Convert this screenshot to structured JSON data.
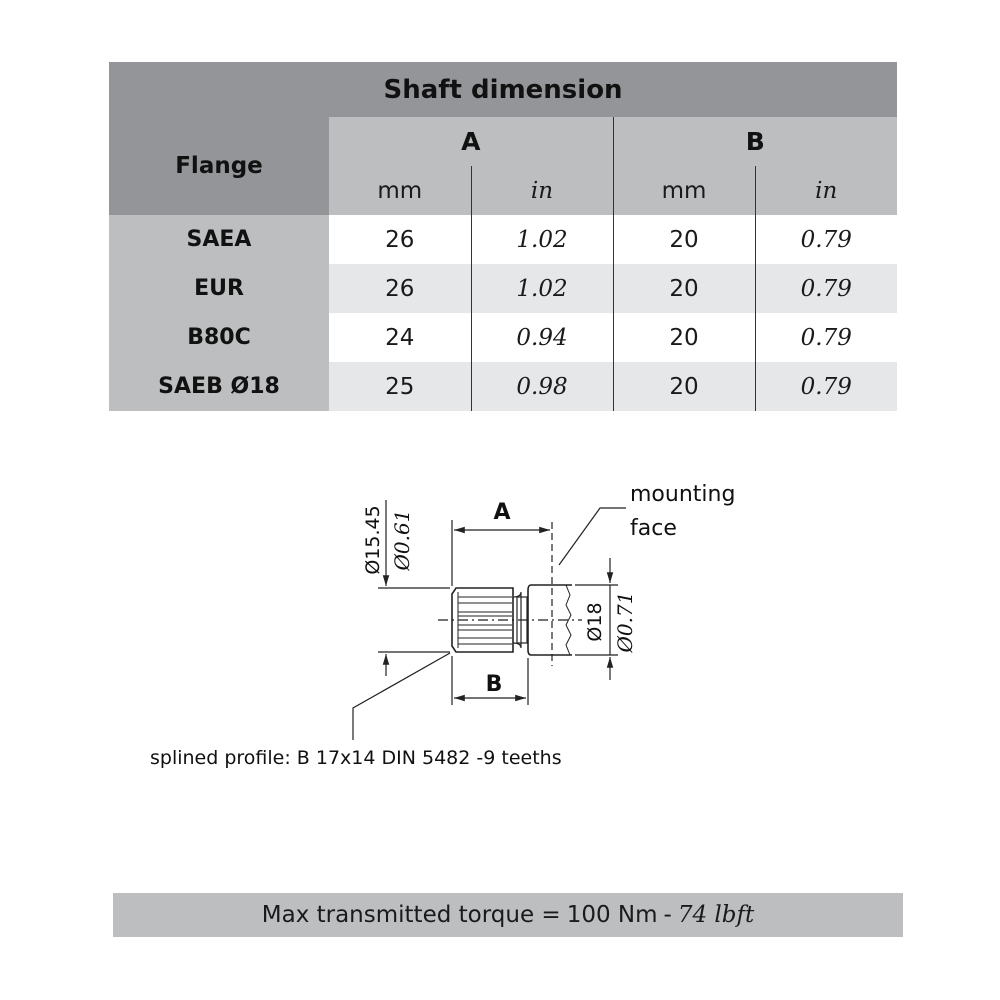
{
  "table": {
    "title": "Shaft dimension",
    "flange_header": "Flange",
    "groups": [
      "A",
      "B"
    ],
    "units": [
      "mm",
      "in",
      "mm",
      "in"
    ],
    "rows": [
      {
        "flange": "SAEA",
        "a_mm": "26",
        "a_in": "1.02",
        "b_mm": "20",
        "b_in": "0.79"
      },
      {
        "flange": "EUR",
        "a_mm": "26",
        "a_in": "1.02",
        "b_mm": "20",
        "b_in": "0.79"
      },
      {
        "flange": "B80C",
        "a_mm": "24",
        "a_in": "0.94",
        "b_mm": "20",
        "b_in": "0.79"
      },
      {
        "flange": "SAEB Ø18",
        "a_mm": "25",
        "a_in": "0.98",
        "b_mm": "20",
        "b_in": "0.79"
      }
    ]
  },
  "drawing": {
    "label_a": "A",
    "label_b": "B",
    "dia_spline_mm": "Ø15.45",
    "dia_spline_in": "Ø0.61",
    "dia_shaft_mm": "Ø18",
    "dia_shaft_in": "Ø0.71",
    "mounting_face_line1": "mounting",
    "mounting_face_line2": "face",
    "spline_note": "splined profile: B 17x14 DIN 5482 -9 teeths"
  },
  "footer": {
    "label": "Max transmitted torque =",
    "value_metric": "100 Nm",
    "separator": "-",
    "value_imperial": "74 lbft"
  }
}
